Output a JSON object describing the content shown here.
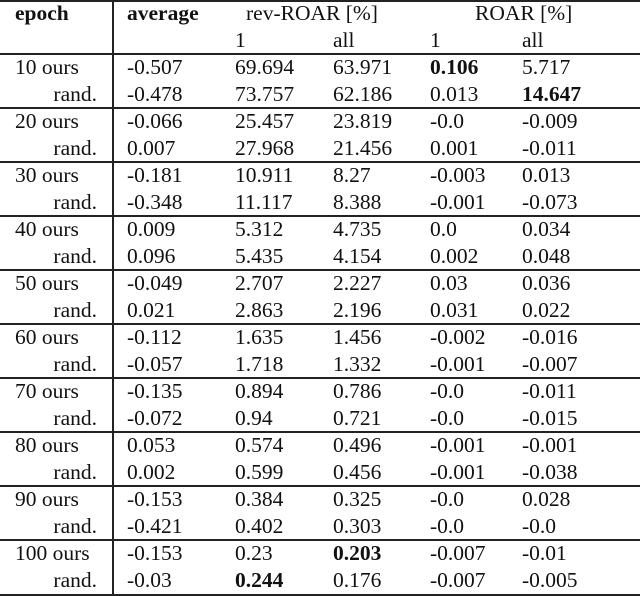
{
  "header": {
    "epoch": "epoch",
    "average": "average",
    "rev_roar": "rev-ROAR [%]",
    "roar": "ROAR [%]",
    "sub": [
      "1",
      "all",
      "1",
      "all"
    ]
  },
  "groups": [
    {
      "epoch": "10",
      "rows": [
        {
          "label": "ours",
          "values": [
            "-0.507",
            "69.694",
            "63.971",
            "0.106",
            "5.717"
          ],
          "bold": [
            3
          ]
        },
        {
          "label": "rand.",
          "values": [
            "-0.478",
            "73.757",
            "62.186",
            "0.013",
            "14.647"
          ],
          "bold": [
            4
          ]
        }
      ]
    },
    {
      "epoch": "20",
      "rows": [
        {
          "label": "ours",
          "values": [
            "-0.066",
            "25.457",
            "23.819",
            "-0.0",
            "-0.009"
          ],
          "bold": []
        },
        {
          "label": "rand.",
          "values": [
            "0.007",
            "27.968",
            "21.456",
            "0.001",
            "-0.011"
          ],
          "bold": []
        }
      ]
    },
    {
      "epoch": "30",
      "rows": [
        {
          "label": "ours",
          "values": [
            "-0.181",
            "10.911",
            "8.27",
            "-0.003",
            "0.013"
          ],
          "bold": []
        },
        {
          "label": "rand.",
          "values": [
            "-0.348",
            "11.117",
            "8.388",
            "-0.001",
            "-0.073"
          ],
          "bold": []
        }
      ]
    },
    {
      "epoch": "40",
      "rows": [
        {
          "label": "ours",
          "values": [
            "0.009",
            "5.312",
            "4.735",
            "0.0",
            "0.034"
          ],
          "bold": []
        },
        {
          "label": "rand.",
          "values": [
            "0.096",
            "5.435",
            "4.154",
            "0.002",
            "0.048"
          ],
          "bold": []
        }
      ]
    },
    {
      "epoch": "50",
      "rows": [
        {
          "label": "ours",
          "values": [
            "-0.049",
            "2.707",
            "2.227",
            "0.03",
            "0.036"
          ],
          "bold": []
        },
        {
          "label": "rand.",
          "values": [
            "0.021",
            "2.863",
            "2.196",
            "0.031",
            "0.022"
          ],
          "bold": []
        }
      ]
    },
    {
      "epoch": "60",
      "rows": [
        {
          "label": "ours",
          "values": [
            "-0.112",
            "1.635",
            "1.456",
            "-0.002",
            "-0.016"
          ],
          "bold": []
        },
        {
          "label": "rand.",
          "values": [
            "-0.057",
            "1.718",
            "1.332",
            "-0.001",
            "-0.007"
          ],
          "bold": []
        }
      ]
    },
    {
      "epoch": "70",
      "rows": [
        {
          "label": "ours",
          "values": [
            "-0.135",
            "0.894",
            "0.786",
            "-0.0",
            "-0.011"
          ],
          "bold": []
        },
        {
          "label": "rand.",
          "values": [
            "-0.072",
            "0.94",
            "0.721",
            "-0.0",
            "-0.015"
          ],
          "bold": []
        }
      ]
    },
    {
      "epoch": "80",
      "rows": [
        {
          "label": "ours",
          "values": [
            "0.053",
            "0.574",
            "0.496",
            "-0.001",
            "-0.001"
          ],
          "bold": []
        },
        {
          "label": "rand.",
          "values": [
            "0.002",
            "0.599",
            "0.456",
            "-0.001",
            "-0.038"
          ],
          "bold": []
        }
      ]
    },
    {
      "epoch": "90",
      "rows": [
        {
          "label": "ours",
          "values": [
            "-0.153",
            "0.384",
            "0.325",
            "-0.0",
            "0.028"
          ],
          "bold": []
        },
        {
          "label": "rand.",
          "values": [
            "-0.421",
            "0.402",
            "0.303",
            "-0.0",
            "-0.0"
          ],
          "bold": []
        }
      ]
    },
    {
      "epoch": "100",
      "rows": [
        {
          "label": "ours",
          "values": [
            "-0.153",
            "0.23",
            "0.203",
            "-0.007",
            "-0.01"
          ],
          "bold": [
            2
          ]
        },
        {
          "label": "rand.",
          "values": [
            "-0.03",
            "0.244",
            "0.176",
            "-0.007",
            "-0.005"
          ],
          "bold": [
            1
          ]
        }
      ]
    }
  ]
}
